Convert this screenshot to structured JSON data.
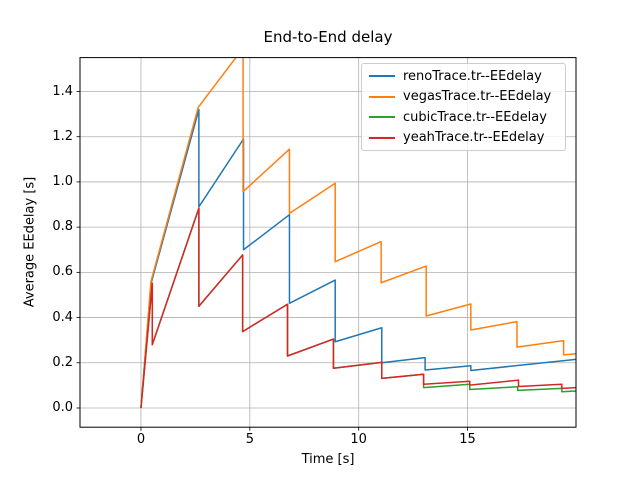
{
  "chart_data": {
    "type": "line",
    "title": "End-to-End delay",
    "xlabel": "Time [s]",
    "ylabel": "Average EEdelay [s]",
    "xlim": [
      -2.8,
      19.98
    ],
    "ylim": [
      -0.085,
      1.55
    ],
    "grid": true,
    "legend_position": "upper right",
    "background": "#ffffff",
    "grid_color": "#b0b0b0",
    "spine_color": "#000000",
    "x_axis": {
      "label": "Time [s]",
      "ticks": [
        {
          "v": 0,
          "label": "0"
        },
        {
          "v": 5,
          "label": "5"
        },
        {
          "v": 10,
          "label": "10"
        },
        {
          "v": 15,
          "label": "15"
        }
      ]
    },
    "y_axis": {
      "label": "Average EEdelay [s]",
      "ticks": [
        {
          "v": 0.0,
          "label": "0.0"
        },
        {
          "v": 0.2,
          "label": "0.2"
        },
        {
          "v": 0.4,
          "label": "0.4"
        },
        {
          "v": 0.6,
          "label": "0.6"
        },
        {
          "v": 0.8,
          "label": "0.8"
        },
        {
          "v": 1.0,
          "label": "1.0"
        },
        {
          "v": 1.2,
          "label": "1.2"
        },
        {
          "v": 1.4,
          "label": "1.4"
        }
      ]
    },
    "series": [
      {
        "name": "renoTrace.tr--EEdelay",
        "color": "#1f77b4",
        "points": [
          [
            0,
            0
          ],
          [
            0.46,
            0.55
          ],
          [
            2.66,
            1.32
          ],
          [
            2.66,
            0.89
          ],
          [
            4.71,
            1.19
          ],
          [
            4.71,
            0.7
          ],
          [
            6.82,
            0.855
          ],
          [
            6.82,
            0.463
          ],
          [
            8.92,
            0.566
          ],
          [
            8.92,
            0.293
          ],
          [
            11.06,
            0.355
          ],
          [
            11.06,
            0.2
          ],
          [
            13.05,
            0.223
          ],
          [
            13.05,
            0.168
          ],
          [
            15.15,
            0.187
          ],
          [
            15.15,
            0.166
          ],
          [
            19.98,
            0.215
          ]
        ]
      },
      {
        "name": "vegasTrace.tr--EEdelay",
        "color": "#ff7f0e",
        "points": [
          [
            0,
            0
          ],
          [
            0.46,
            0.56
          ],
          [
            2.63,
            1.33
          ],
          [
            4.43,
            1.559
          ],
          [
            4.69,
            1.559
          ],
          [
            4.69,
            0.957
          ],
          [
            6.82,
            1.145
          ],
          [
            6.82,
            0.861
          ],
          [
            8.92,
            0.994
          ],
          [
            8.92,
            0.647
          ],
          [
            11.03,
            0.736
          ],
          [
            11.03,
            0.554
          ],
          [
            13.1,
            0.628
          ],
          [
            13.1,
            0.407
          ],
          [
            15.15,
            0.46
          ],
          [
            15.15,
            0.345
          ],
          [
            17.27,
            0.382
          ],
          [
            17.27,
            0.269
          ],
          [
            19.41,
            0.298
          ],
          [
            19.41,
            0.235
          ],
          [
            19.98,
            0.24
          ]
        ]
      },
      {
        "name": "cubicTrace.tr--EEdelay",
        "color": "#2ca02c",
        "points": [
          [
            0,
            0
          ],
          [
            0.52,
            0.552
          ],
          [
            0.52,
            0.28
          ],
          [
            2.66,
            0.884
          ],
          [
            2.66,
            0.45
          ],
          [
            4.67,
            0.677
          ],
          [
            4.67,
            0.338
          ],
          [
            6.73,
            0.459
          ],
          [
            6.73,
            0.23
          ],
          [
            8.84,
            0.305
          ],
          [
            8.84,
            0.176
          ],
          [
            11.06,
            0.202
          ],
          [
            11.06,
            0.131
          ],
          [
            12.98,
            0.149
          ],
          [
            12.98,
            0.09
          ],
          [
            15.1,
            0.105
          ],
          [
            15.1,
            0.082
          ],
          [
            17.3,
            0.094
          ],
          [
            17.3,
            0.078
          ],
          [
            19.33,
            0.087
          ],
          [
            19.33,
            0.072
          ],
          [
            19.98,
            0.075
          ]
        ]
      },
      {
        "name": "yeahTrace.tr--EEdelay",
        "color": "#d62728",
        "points": [
          [
            0,
            0
          ],
          [
            0.52,
            0.552
          ],
          [
            0.52,
            0.28
          ],
          [
            2.66,
            0.884
          ],
          [
            2.66,
            0.45
          ],
          [
            4.67,
            0.677
          ],
          [
            4.67,
            0.338
          ],
          [
            6.73,
            0.459
          ],
          [
            6.73,
            0.23
          ],
          [
            8.84,
            0.305
          ],
          [
            8.84,
            0.176
          ],
          [
            11.06,
            0.202
          ],
          [
            11.06,
            0.131
          ],
          [
            12.98,
            0.149
          ],
          [
            12.98,
            0.105
          ],
          [
            15.1,
            0.118
          ],
          [
            15.1,
            0.101
          ],
          [
            17.34,
            0.123
          ],
          [
            17.34,
            0.095
          ],
          [
            19.33,
            0.105
          ],
          [
            19.33,
            0.087
          ],
          [
            19.98,
            0.09
          ]
        ]
      }
    ]
  }
}
